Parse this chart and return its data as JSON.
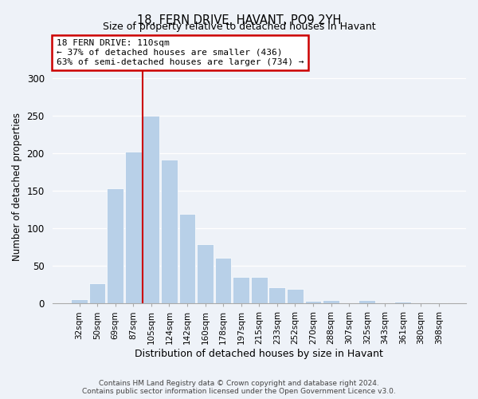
{
  "title": "18, FERN DRIVE, HAVANT, PO9 2YH",
  "subtitle": "Size of property relative to detached houses in Havant",
  "xlabel": "Distribution of detached houses by size in Havant",
  "ylabel": "Number of detached properties",
  "bar_labels": [
    "32sqm",
    "50sqm",
    "69sqm",
    "87sqm",
    "105sqm",
    "124sqm",
    "142sqm",
    "160sqm",
    "178sqm",
    "197sqm",
    "215sqm",
    "233sqm",
    "252sqm",
    "270sqm",
    "288sqm",
    "307sqm",
    "325sqm",
    "343sqm",
    "361sqm",
    "380sqm",
    "398sqm"
  ],
  "bar_heights": [
    6,
    27,
    153,
    202,
    250,
    192,
    119,
    79,
    61,
    35,
    35,
    22,
    19,
    4,
    5,
    0,
    5,
    0,
    2,
    0,
    1
  ],
  "bar_color": "#b8d0e8",
  "highlight_bar_index": 4,
  "highlight_color": "#cc0000",
  "annotation_line1": "18 FERN DRIVE: 110sqm",
  "annotation_line2": "← 37% of detached houses are smaller (436)",
  "annotation_line3": "63% of semi-detached houses are larger (734) →",
  "annotation_box_color": "#ffffff",
  "annotation_box_edge_color": "#cc0000",
  "ylim": [
    0,
    310
  ],
  "yticks": [
    0,
    50,
    100,
    150,
    200,
    250,
    300
  ],
  "background_color": "#eef2f8",
  "footer_line1": "Contains HM Land Registry data © Crown copyright and database right 2024.",
  "footer_line2": "Contains public sector information licensed under the Open Government Licence v3.0."
}
